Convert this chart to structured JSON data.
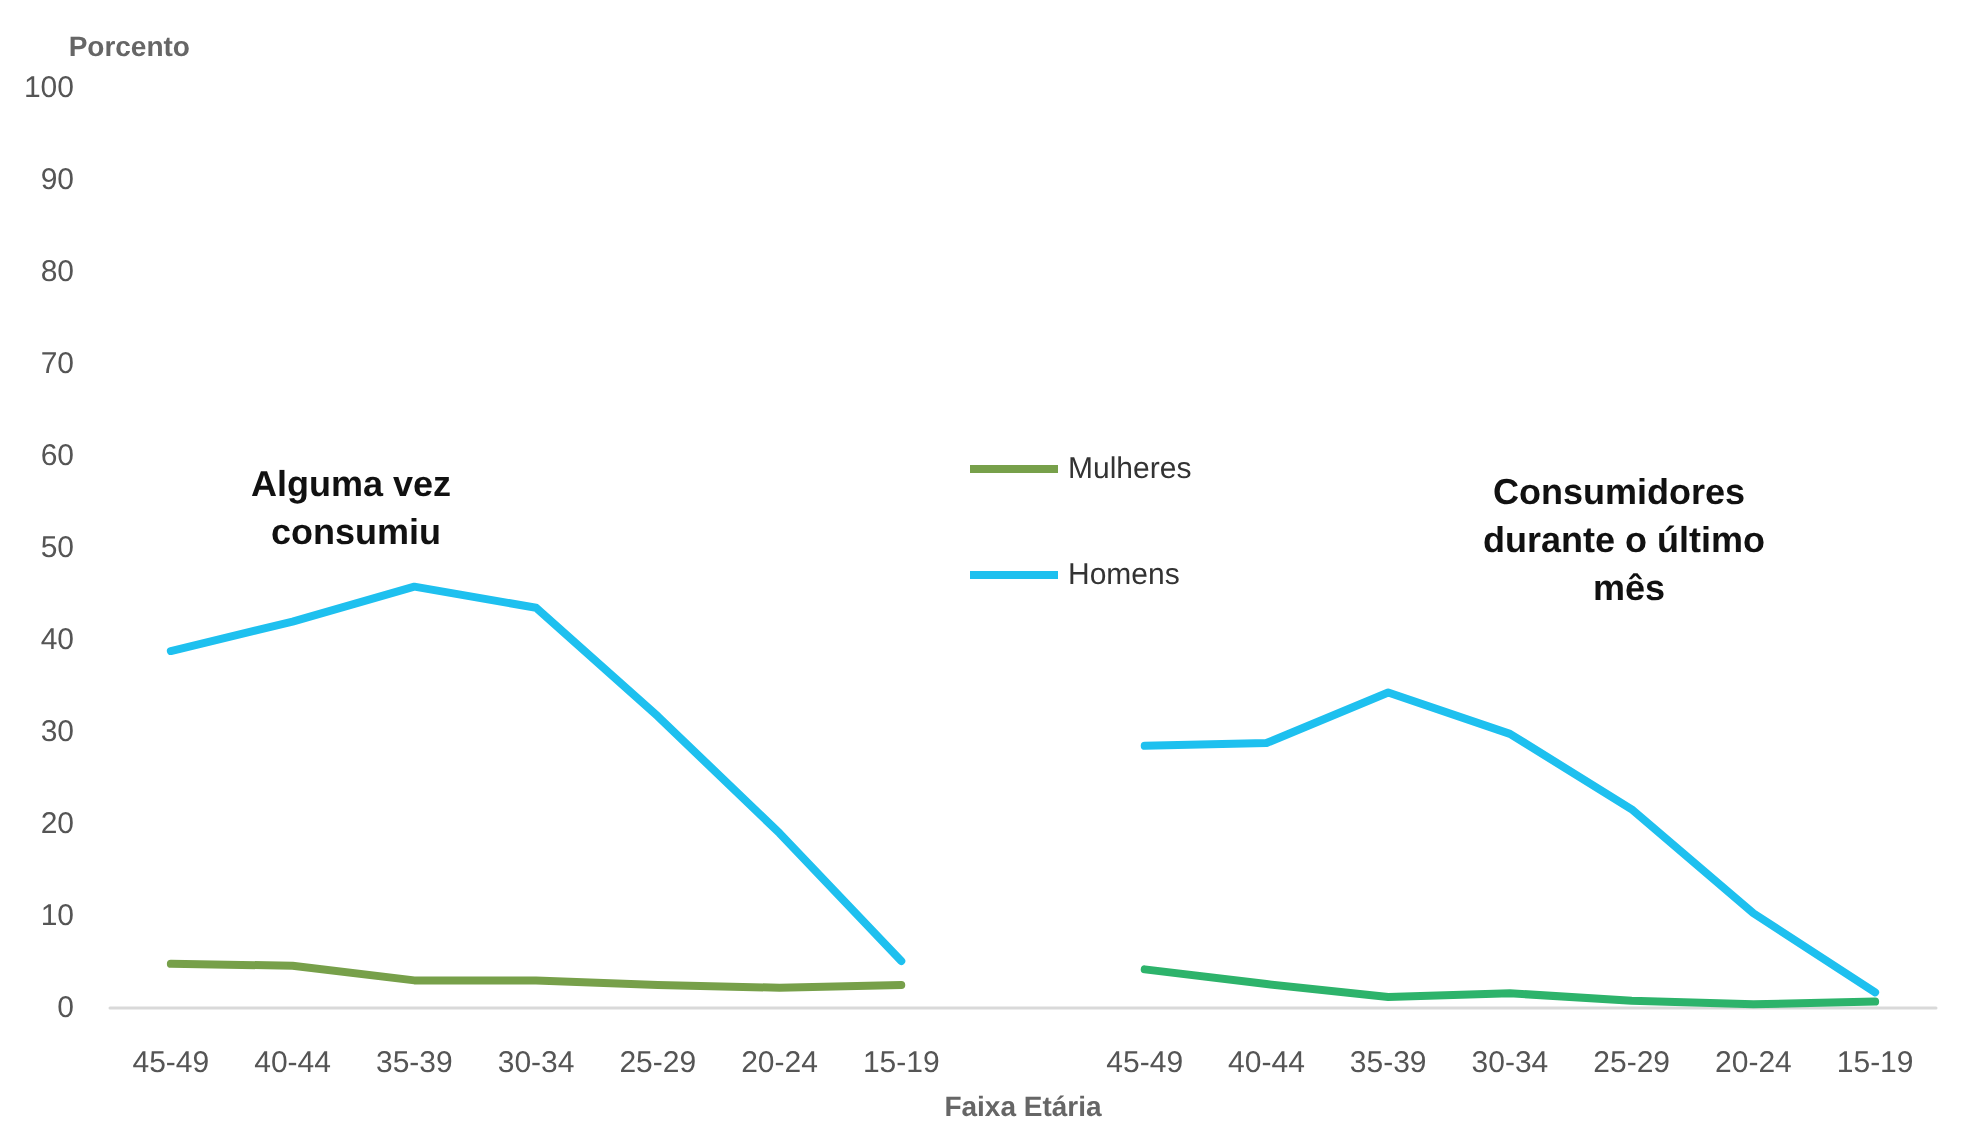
{
  "chart_data": {
    "type": "line",
    "ylabel": "Porcento",
    "xlabel": "Faixa Etária",
    "categories": [
      "45-49",
      "40-44",
      "35-39",
      "30-34",
      "25-29",
      "20-24",
      "15-19",
      null,
      "45-49",
      "40-44",
      "35-39",
      "30-34",
      "25-29",
      "20-24",
      "15-19"
    ],
    "series": [
      {
        "name": "Mulheres",
        "color": "#77a04a",
        "values": [
          4.8,
          4.6,
          3.0,
          3.0,
          2.5,
          2.2,
          2.5,
          null,
          null,
          null,
          null,
          null,
          null,
          null,
          null
        ]
      },
      {
        "name": "Homens",
        "color": "#1ec0ef",
        "values": [
          38.8,
          42,
          45.8,
          43.5,
          31.7,
          19,
          5.1,
          null,
          28.5,
          28.8,
          34.3,
          29.8,
          21.6,
          10.3,
          1.7
        ]
      },
      {
        "color": "#2db36b",
        "values": [
          null,
          null,
          null,
          null,
          null,
          null,
          null,
          null,
          4.2,
          2.6,
          1.2,
          1.6,
          0.8,
          0.4,
          0.7
        ]
      }
    ],
    "ylim": [
      0,
      100
    ],
    "yticks": [
      0,
      10,
      20,
      30,
      40,
      50,
      60,
      70,
      80,
      90,
      100
    ],
    "annotations": [
      "Alguma vez consumiu",
      "Consumidores durante o último mês"
    ],
    "grid": false,
    "legend": "top",
    "marker": "none",
    "line_style": "solid"
  }
}
